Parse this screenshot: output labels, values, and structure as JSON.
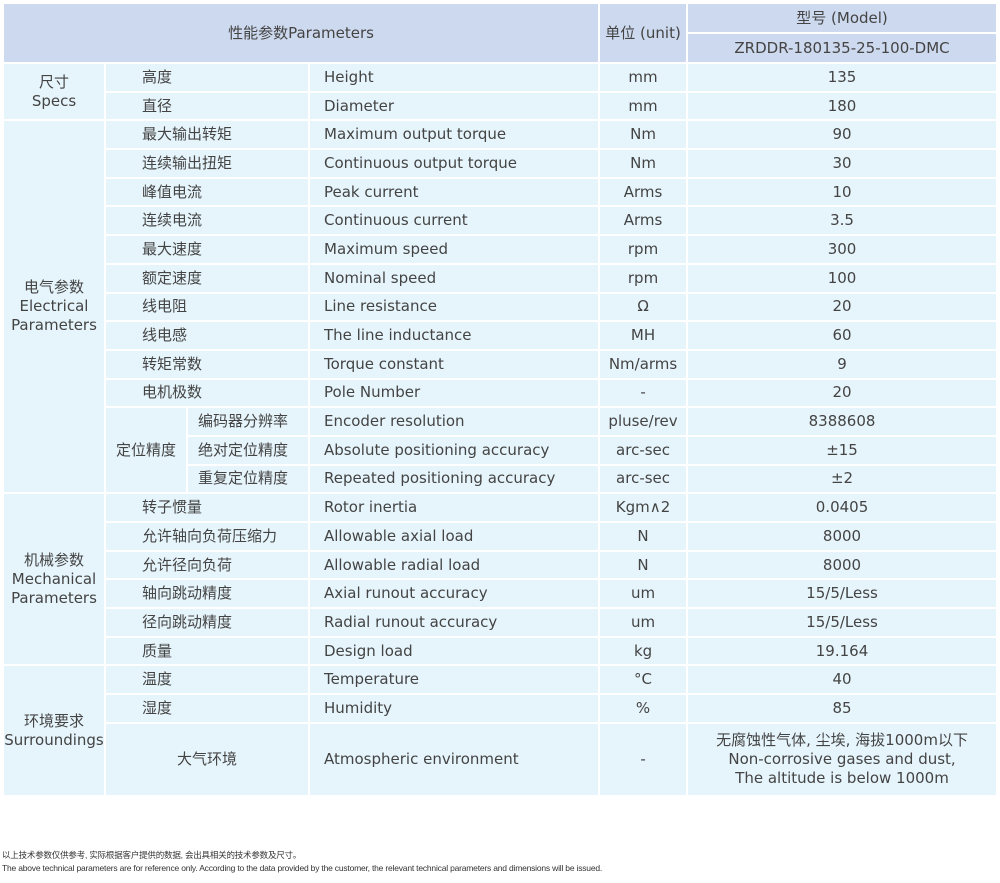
{
  "header": {
    "parameters": "性能参数Parameters",
    "unit": "单位 (unit)",
    "model_label": "型号 (Model)",
    "model": "ZRDDR-180135-25-100-DMC"
  },
  "groups": [
    {
      "label": [
        "尺寸",
        "Specs"
      ],
      "rows": [
        {
          "cn": "高度",
          "en": "Height",
          "unit": "mm",
          "value": "135"
        },
        {
          "cn": "直径",
          "en": "Diameter",
          "unit": "mm",
          "value": "180"
        }
      ]
    },
    {
      "label": [
        "电气参数",
        "Electrical",
        "Parameters"
      ],
      "rows": [
        {
          "cn": "最大输出转矩",
          "en": "Maximum output torque",
          "unit": "Nm",
          "value": "90"
        },
        {
          "cn": "连续输出扭矩",
          "en": "Continuous output torque",
          "unit": "Nm",
          "value": "30"
        },
        {
          "cn": "峰值电流",
          "en": "Peak current",
          "unit": "Arms",
          "value": "10"
        },
        {
          "cn": "连续电流",
          "en": "Continuous current",
          "unit": "Arms",
          "value": "3.5"
        },
        {
          "cn": "最大速度",
          "en": "Maximum speed",
          "unit": "rpm",
          "value": "300"
        },
        {
          "cn": "额定速度",
          "en": "Nominal speed",
          "unit": "rpm",
          "value": "100"
        },
        {
          "cn": "线电阻",
          "en": "Line resistance",
          "unit": "Ω",
          "value": "20"
        },
        {
          "cn": "线电感",
          "en": "The line inductance",
          "unit": "MH",
          "value": "60"
        },
        {
          "cn": "转矩常数",
          "en": "Torque constant",
          "unit": "Nm/arms",
          "value": "9"
        },
        {
          "cn": "电机极数",
          "en": "Pole Number",
          "unit": "-",
          "value": "20"
        },
        {
          "sub": "定位精度",
          "cn": "编码器分辨率",
          "en": "Encoder resolution",
          "unit": "pluse/rev",
          "value": "8388608"
        },
        {
          "cn": "绝对定位精度",
          "en": "Absolute positioning accuracy",
          "unit": "arc-sec",
          "value": "±15"
        },
        {
          "cn": "重复定位精度",
          "en": "Repeated positioning accuracy",
          "unit": "arc-sec",
          "value": "±2"
        }
      ]
    },
    {
      "label": [
        "机械参数",
        "Mechanical",
        "Parameters"
      ],
      "rows": [
        {
          "cn": "转子惯量",
          "en": "Rotor inertia",
          "unit": "Kgm∧2",
          "value": "0.0405"
        },
        {
          "cn": "允许轴向负荷压缩力",
          "en": "Allowable axial load",
          "unit": "N",
          "value": "8000"
        },
        {
          "cn": "允许径向负荷",
          "en": "Allowable radial load",
          "unit": "N",
          "value": "8000"
        },
        {
          "cn": "轴向跳动精度",
          "en": "Axial runout accuracy",
          "unit": "um",
          "value": "15/5/Less"
        },
        {
          "cn": "径向跳动精度",
          "en": "Radial runout accuracy",
          "unit": "um",
          "value": "15/5/Less"
        },
        {
          "cn": "质量",
          "en": "Design load",
          "unit": "kg",
          "value": "19.164"
        }
      ]
    },
    {
      "label": [
        "环境要求",
        "Surroundings"
      ],
      "rows": [
        {
          "cn": "温度",
          "en": "Temperature",
          "unit": "°C",
          "value": "40"
        },
        {
          "cn": "湿度",
          "en": "Humidity",
          "unit": "%",
          "value": "85"
        },
        {
          "cn": "大气环境",
          "en": "Atmospheric environment",
          "unit": "-",
          "value": "无腐蚀性气体, 尘埃, 海拔1000m以下\nNon-corrosive gases and dust,\nThe altitude is below 1000m",
          "tall": true
        }
      ]
    }
  ],
  "footnote": {
    "cn": "以上技术参数仅供参考, 实际根据客户提供的数据, 会出具相关的技术参数及尺寸。",
    "en": "The above technical parameters are for reference only. According to the data provided by the customer, the relevant technical parameters and dimensions will be issued."
  }
}
